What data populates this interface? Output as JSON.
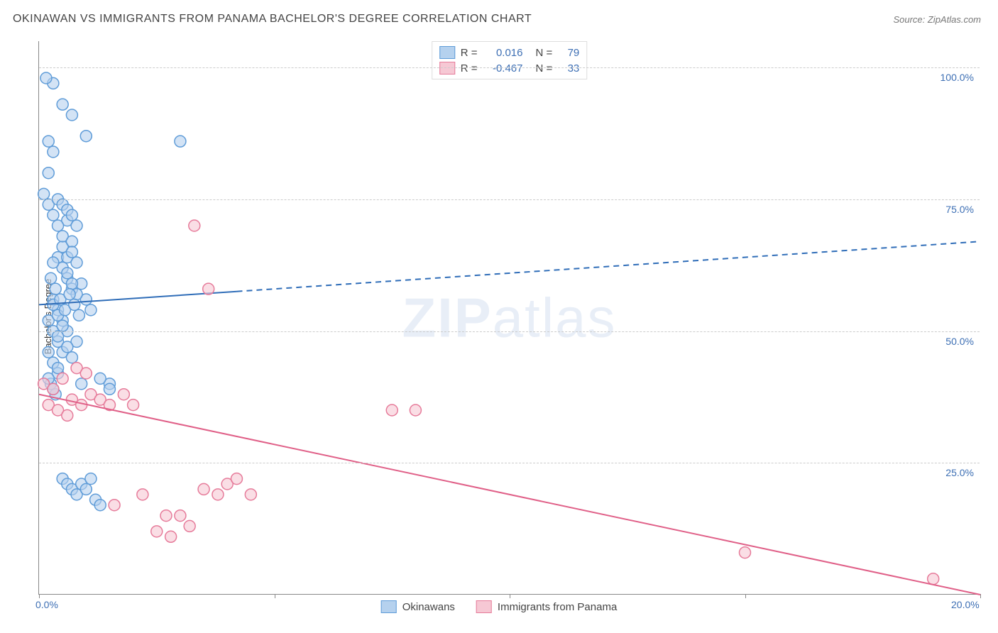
{
  "title": "OKINAWAN VS IMMIGRANTS FROM PANAMA BACHELOR'S DEGREE CORRELATION CHART",
  "source": "Source: ZipAtlas.com",
  "watermark_bold": "ZIP",
  "watermark_rest": "atlas",
  "chart": {
    "type": "scatter",
    "ylabel": "Bachelor's Degree",
    "xlim": [
      0,
      20
    ],
    "ylim": [
      0,
      105
    ],
    "x_ticks": [
      0,
      5,
      10,
      15,
      20
    ],
    "x_tick_labels": [
      "0.0%",
      "",
      "",
      "",
      "20.0%"
    ],
    "y_grid": [
      25,
      50,
      75,
      100
    ],
    "y_tick_labels": [
      "25.0%",
      "50.0%",
      "75.0%",
      "100.0%"
    ],
    "background_color": "#ffffff",
    "grid_color": "#cccccc",
    "axis_color": "#888888",
    "label_color": "#3d6fb4",
    "series": [
      {
        "name": "Okinawans",
        "color_fill": "#b5d1ee",
        "color_stroke": "#5f9cd8",
        "marker_radius": 8,
        "fill_opacity": 0.6,
        "stats": {
          "R": "0.016",
          "N": "79"
        },
        "regression": {
          "x1": 0,
          "y1": 55,
          "x2": 20,
          "y2": 67,
          "solid_until_x": 4.2,
          "color": "#2f6db8",
          "width": 2
        },
        "points": [
          [
            0.1,
            76
          ],
          [
            0.2,
            74
          ],
          [
            0.3,
            97
          ],
          [
            0.5,
            93
          ],
          [
            0.7,
            91
          ],
          [
            1.0,
            87
          ],
          [
            0.2,
            86
          ],
          [
            0.3,
            84
          ],
          [
            0.2,
            80
          ],
          [
            0.4,
            64
          ],
          [
            0.5,
            62
          ],
          [
            0.6,
            60
          ],
          [
            0.7,
            58
          ],
          [
            0.3,
            56
          ],
          [
            0.4,
            54
          ],
          [
            0.5,
            52
          ],
          [
            0.6,
            50
          ],
          [
            0.8,
            48
          ],
          [
            0.9,
            59
          ],
          [
            1.0,
            56
          ],
          [
            1.1,
            54
          ],
          [
            0.2,
            52
          ],
          [
            0.3,
            50
          ],
          [
            0.4,
            48
          ],
          [
            0.5,
            46
          ],
          [
            0.6,
            61
          ],
          [
            0.7,
            59
          ],
          [
            0.8,
            57
          ],
          [
            0.3,
            55
          ],
          [
            0.4,
            53
          ],
          [
            0.5,
            66
          ],
          [
            0.6,
            64
          ],
          [
            0.7,
            45
          ],
          [
            0.3,
            63
          ],
          [
            0.4,
            42
          ],
          [
            1.5,
            40
          ],
          [
            0.5,
            22
          ],
          [
            0.6,
            21
          ],
          [
            0.7,
            20
          ],
          [
            0.8,
            19
          ],
          [
            0.9,
            21
          ],
          [
            1.0,
            20
          ],
          [
            1.1,
            22
          ],
          [
            1.2,
            18
          ],
          [
            1.3,
            17
          ],
          [
            3.0,
            86
          ],
          [
            0.15,
            98
          ],
          [
            0.6,
            71
          ],
          [
            0.8,
            70
          ],
          [
            0.25,
            40
          ],
          [
            0.35,
            38
          ],
          [
            0.9,
            40
          ],
          [
            0.5,
            68
          ],
          [
            0.4,
            70
          ],
          [
            0.7,
            67
          ],
          [
            0.25,
            60
          ],
          [
            0.35,
            58
          ],
          [
            0.45,
            56
          ],
          [
            0.55,
            54
          ],
          [
            0.65,
            57
          ],
          [
            0.75,
            55
          ],
          [
            0.85,
            53
          ],
          [
            0.2,
            46
          ],
          [
            0.3,
            44
          ],
          [
            0.4,
            49
          ],
          [
            0.5,
            51
          ],
          [
            0.6,
            47
          ],
          [
            0.7,
            65
          ],
          [
            0.8,
            63
          ],
          [
            0.3,
            72
          ],
          [
            0.4,
            75
          ],
          [
            0.5,
            74
          ],
          [
            0.6,
            73
          ],
          [
            0.7,
            72
          ],
          [
            1.3,
            41
          ],
          [
            1.5,
            39
          ],
          [
            0.2,
            41
          ],
          [
            0.3,
            39
          ],
          [
            0.4,
            43
          ]
        ]
      },
      {
        "name": "Immigrants from Panama",
        "color_fill": "#f6c8d4",
        "color_stroke": "#e67b9a",
        "marker_radius": 8,
        "fill_opacity": 0.6,
        "stats": {
          "R": "-0.467",
          "N": "33"
        },
        "regression": {
          "x1": 0,
          "y1": 38,
          "x2": 20,
          "y2": 0,
          "solid_until_x": 20,
          "color": "#e06088",
          "width": 2
        },
        "points": [
          [
            0.1,
            40
          ],
          [
            0.3,
            39
          ],
          [
            0.5,
            41
          ],
          [
            0.7,
            37
          ],
          [
            0.9,
            36
          ],
          [
            1.1,
            38
          ],
          [
            1.3,
            37
          ],
          [
            1.5,
            36
          ],
          [
            1.8,
            38
          ],
          [
            0.2,
            36
          ],
          [
            0.4,
            35
          ],
          [
            0.6,
            34
          ],
          [
            0.8,
            43
          ],
          [
            1.0,
            42
          ],
          [
            2.0,
            36
          ],
          [
            2.2,
            19
          ],
          [
            2.5,
            12
          ],
          [
            2.8,
            11
          ],
          [
            3.2,
            13
          ],
          [
            3.5,
            20
          ],
          [
            3.8,
            19
          ],
          [
            4.0,
            21
          ],
          [
            4.2,
            22
          ],
          [
            4.5,
            19
          ],
          [
            2.7,
            15
          ],
          [
            3.0,
            15
          ],
          [
            3.3,
            70
          ],
          [
            3.6,
            58
          ],
          [
            7.5,
            35
          ],
          [
            8.0,
            35
          ],
          [
            15.0,
            8
          ],
          [
            19.0,
            3
          ],
          [
            1.6,
            17
          ]
        ]
      }
    ],
    "bottom_legend": [
      {
        "label": "Okinawans",
        "fill": "#b5d1ee",
        "stroke": "#5f9cd8"
      },
      {
        "label": "Immigrants from Panama",
        "fill": "#f6c8d4",
        "stroke": "#e67b9a"
      }
    ],
    "stat_legend_labels": {
      "R": "R =",
      "N": "N ="
    }
  }
}
